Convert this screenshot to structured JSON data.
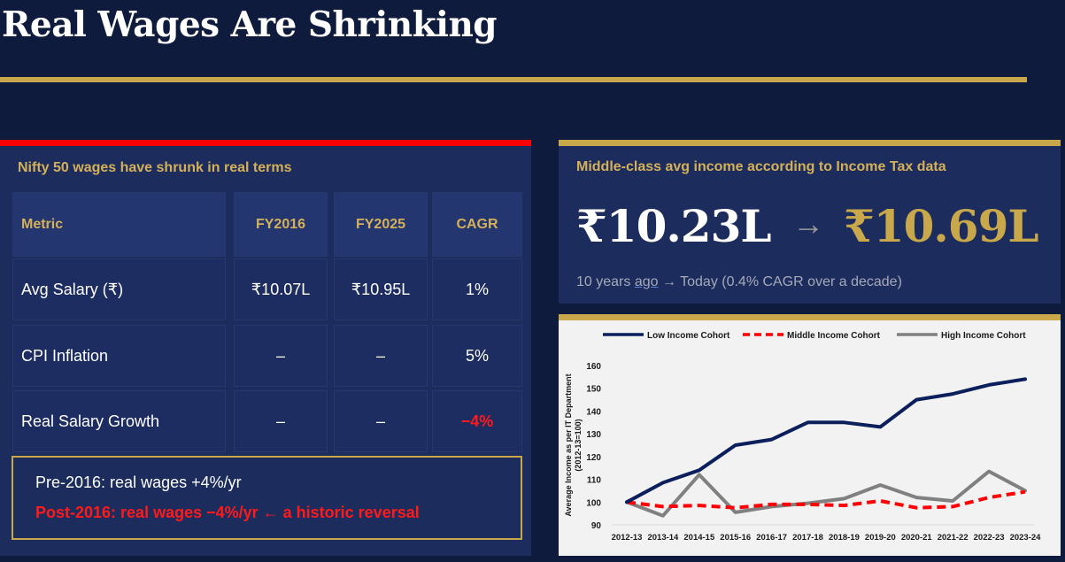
{
  "page": {
    "title": "Real Wages Are Shrinking"
  },
  "left_panel": {
    "heading": "Nifty 50 wages have shrunk in real terms",
    "table": {
      "headers": [
        "Metric",
        "FY2016",
        "FY2025",
        "CAGR"
      ],
      "rows": [
        [
          "Avg Salary (₹)",
          "₹10.07L",
          "₹10.95L",
          "1%"
        ],
        [
          "CPI Inflation",
          "–",
          "–",
          "5%"
        ],
        [
          "Real Salary Growth",
          "–",
          "–",
          "−4%"
        ]
      ]
    },
    "callout": {
      "line1": "Pre-2016:  real wages +4%/yr",
      "line2": "Post-2016:  real wages −4%/yr  ← a historic reversal"
    },
    "accent_color": "#ff0000"
  },
  "right_panel": {
    "heading": "Middle-class avg income according to Income Tax data",
    "from_value": "₹10.23L",
    "arrow": "→",
    "to_value": "₹10.69L",
    "sub_from": "10 years ",
    "sub_from_underlined": "ago",
    "sub_rest": " →  Today   (0.4% CAGR over a decade)",
    "accent_color": "#c9a84c"
  },
  "chart_data": {
    "type": "line",
    "title": "",
    "xlabel": "",
    "ylabel": "Average Income as per IT Department (2012-13=100)",
    "ylabel_line1": "Average Income as per IT Department",
    "ylabel_line2": "(2012-13=100)",
    "ylim": [
      90,
      160
    ],
    "yticks": [
      90,
      100,
      110,
      120,
      130,
      140,
      150,
      160
    ],
    "grid": false,
    "legend_position": "top",
    "categories": [
      "2012-13",
      "2013-14",
      "2014-15",
      "2015-16",
      "2016-17",
      "2017-18",
      "2018-19",
      "2019-20",
      "2020-21",
      "2021-22",
      "2022-23",
      "2023-24"
    ],
    "series": [
      {
        "name": "Low Income Cohort",
        "color": "#0b1f5c",
        "style": "solid",
        "values": [
          100,
          108.5,
          114,
          125,
          127.5,
          135,
          135,
          133,
          145,
          147.5,
          151.5,
          154
        ]
      },
      {
        "name": "Middle Income Cohort",
        "color": "#ff0000",
        "style": "dashed",
        "values": [
          100,
          98,
          98.5,
          97.5,
          99,
          99,
          98.5,
          100.5,
          97.5,
          98,
          102,
          104.5
        ]
      },
      {
        "name": "High Income Cohort",
        "color": "#808080",
        "style": "solid",
        "values": [
          100,
          94,
          112,
          95.5,
          98,
          99.5,
          101.5,
          107.5,
          102,
          100.5,
          113.5,
          105
        ]
      }
    ]
  }
}
